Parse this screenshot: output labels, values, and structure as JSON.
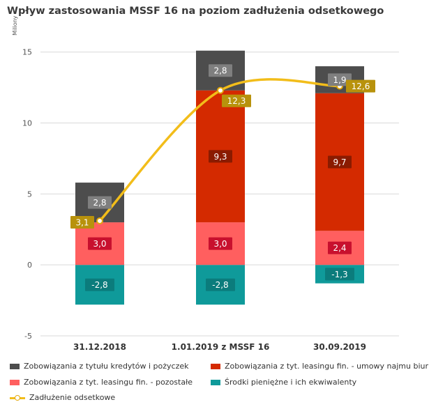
{
  "chart_data": {
    "type": "bar",
    "title": "Wpływ zastosowania MSSF 16 na poziom zadłużenia odsetkowego",
    "ylabel": "Miliony",
    "xlabel": "",
    "ylim": [
      -5,
      17
    ],
    "yticks": [
      -5,
      0,
      5,
      10,
      15
    ],
    "categories": [
      "31.12.2018",
      "1.01.2019 z MSSF 16",
      "30.09.2019"
    ],
    "series": [
      {
        "name": "Środki pieniężne i ich ekwiwalenty",
        "values": [
          -2.8,
          -2.8,
          -1.3
        ],
        "labels": [
          "-2,8",
          "-2,8",
          "-1,3"
        ],
        "color": "#0f9a9a",
        "label_color": "#0b7c7c"
      },
      {
        "name": "Zobowiązania z tyt. leasingu fin. - pozostałe",
        "values": [
          3.0,
          3.0,
          2.4
        ],
        "labels": [
          "3,0",
          "3,0",
          "2,4"
        ],
        "color": "#ff5f5f",
        "label_color": "#c8102e"
      },
      {
        "name": "Zobowiązania z tyt. leasingu fin. - umowy najmu biur",
        "values": [
          0,
          9.3,
          9.7
        ],
        "labels": [
          "",
          "9,3",
          "9,7"
        ],
        "color": "#d42a00",
        "label_color": "#8a1b00"
      },
      {
        "name": "Zobowiązania z tytułu kredytów i pożyczek",
        "values": [
          2.8,
          2.8,
          1.9
        ],
        "labels": [
          "2,8",
          "2,8",
          "1,9"
        ],
        "color": "#4d4d4d",
        "label_color": "#7f7f7f"
      }
    ],
    "line": {
      "name": "Zadłużenie odsetkowe",
      "values": [
        3.1,
        12.3,
        12.6
      ],
      "labels": [
        "3,1",
        "12,3",
        "12,6"
      ],
      "color": "#f2bd1a",
      "label_color": "#b8920c"
    },
    "legend": [
      {
        "label": "Zobowiązania z tytułu kredytów i pożyczek",
        "color": "#4d4d4d",
        "kind": "box"
      },
      {
        "label": "Zobowiązania z tyt. leasingu fin. - umowy najmu biur",
        "color": "#d42a00",
        "kind": "box"
      },
      {
        "label": "Zobowiązania z tyt. leasingu fin. - pozostałe",
        "color": "#ff5f5f",
        "kind": "box"
      },
      {
        "label": "Środki pieniężne i ich ekwiwalenty",
        "color": "#0f9a9a",
        "kind": "box"
      },
      {
        "label": "Zadłużenie odsetkowe",
        "color": "#f2bd1a",
        "kind": "line"
      }
    ],
    "legend_position": "bottom",
    "grid": true
  }
}
